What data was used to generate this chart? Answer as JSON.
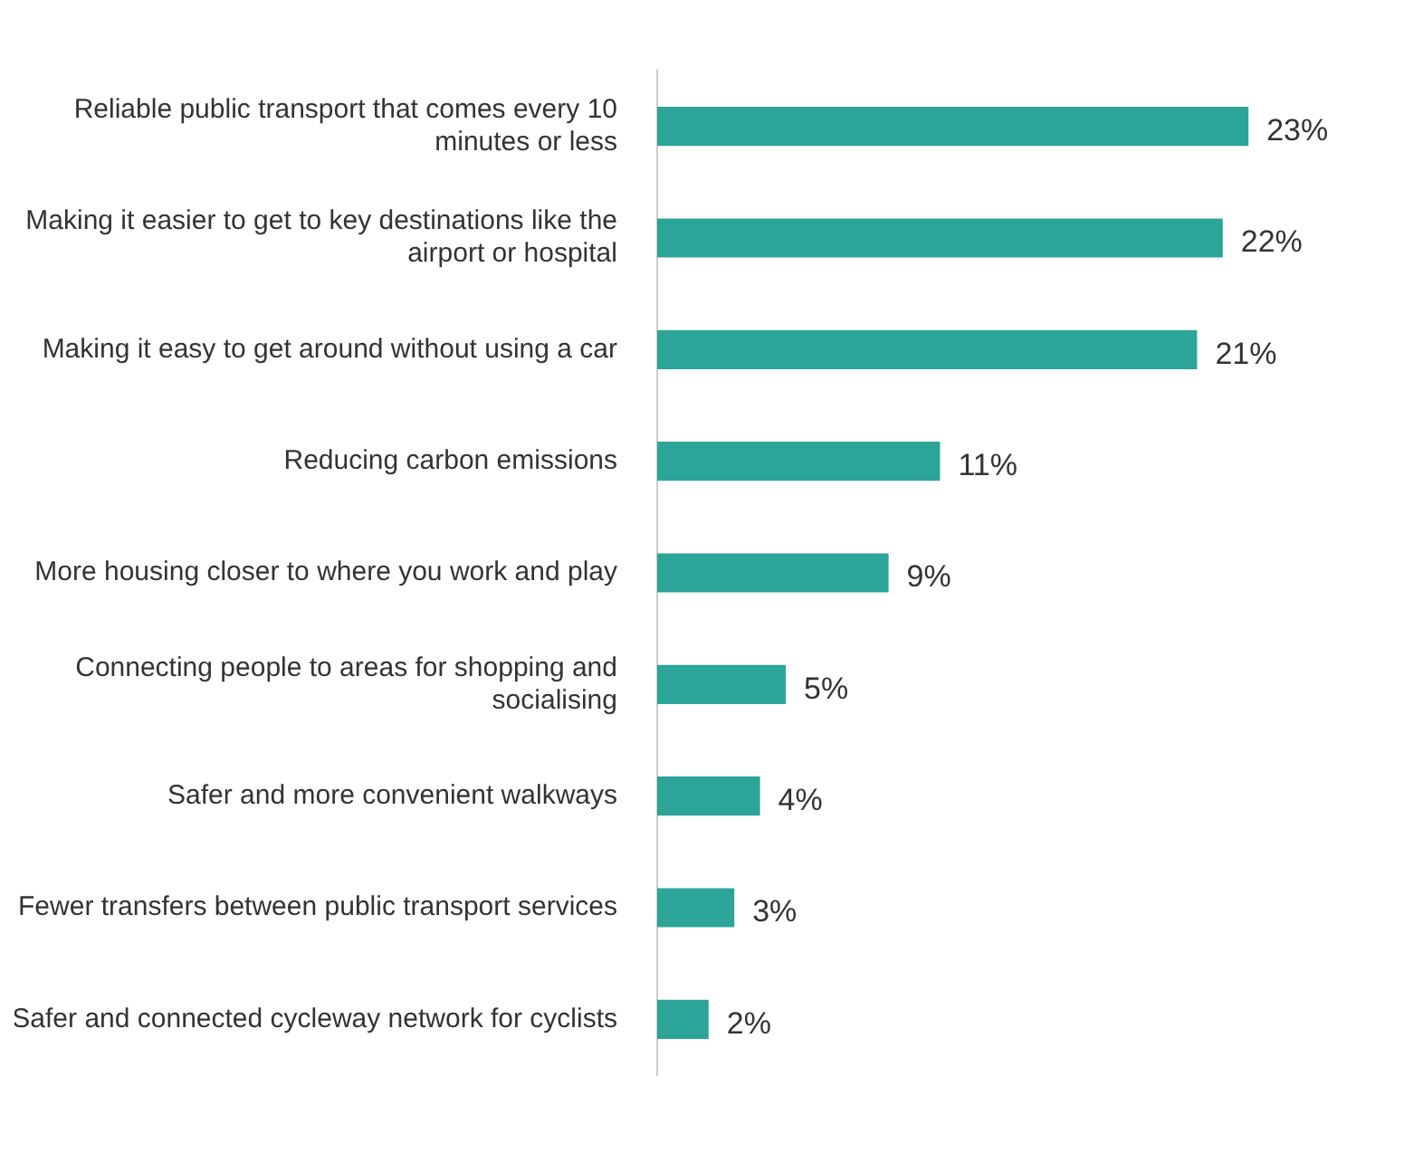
{
  "chart_data": {
    "type": "bar",
    "orientation": "horizontal",
    "categories": [
      "Reliable public transport that comes every 10 minutes or less",
      "Making it easier to get to key destinations like the airport or hospital",
      "Making it easy to get around without using a car",
      "Reducing carbon emissions",
      "More housing closer to where you work and play",
      "Connecting people to areas for shopping and socialising",
      "Safer and more convenient walkways",
      "Fewer transfers between public transport services",
      "Safer and connected cycleway network for cyclists"
    ],
    "values": [
      23,
      22,
      21,
      11,
      9,
      5,
      4,
      3,
      2
    ],
    "value_labels": [
      "23%",
      "22%",
      "21%",
      "11%",
      "9%",
      "5%",
      "4%",
      "3%",
      "2%"
    ],
    "color": "#2aa597",
    "legend": false
  }
}
